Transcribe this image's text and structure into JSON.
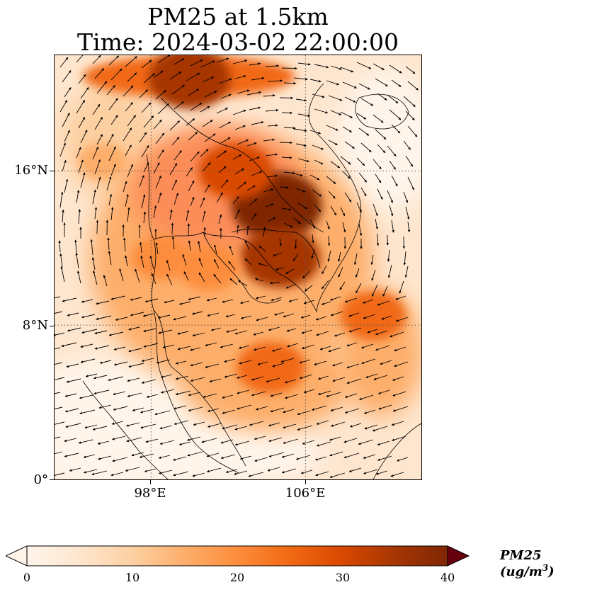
{
  "title_line1": "PM25 at 1.5km",
  "title_line2": "Time: 2024-03-02 22:00:00",
  "y_ticks": [
    "16°N",
    "8°N",
    "0°"
  ],
  "x_ticks": [
    "98°E",
    "106°E"
  ],
  "colorbar": {
    "label_main": "PM25 (ug/m",
    "label_exp": "3",
    "label_close": ")",
    "ticks": [
      "0",
      "10",
      "20",
      "30",
      "40"
    ],
    "cmap": [
      "#fff5eb",
      "#fee6ce",
      "#fdd0a2",
      "#fdae6b",
      "#fd8d3c",
      "#f16913",
      "#d94801",
      "#a63603",
      "#7f2704"
    ]
  },
  "extent": {
    "lon_min": 93,
    "lon_max": 112,
    "lat_min": 0,
    "lat_max": 22
  },
  "gridlines": {
    "lons": [
      98,
      106
    ],
    "lats": [
      8,
      16
    ]
  },
  "pm25_hotspots": [
    {
      "lon": 104.5,
      "lat": 14.2,
      "value": 40
    },
    {
      "lon": 102.4,
      "lat": 16.0,
      "value": 30
    },
    {
      "lon": 100.0,
      "lat": 20.8,
      "value": 34
    },
    {
      "lon": 104.7,
      "lat": 11.5,
      "value": 33
    },
    {
      "lon": 104.2,
      "lat": 5.8,
      "value": 26
    },
    {
      "lon": 109.5,
      "lat": 8.5,
      "value": 24
    },
    {
      "lon": 98.5,
      "lat": 11.5,
      "value": 20
    },
    {
      "lon": 101.0,
      "lat": 11.0,
      "value": 22
    },
    {
      "lon": 95.5,
      "lat": 16.5,
      "value": 14
    }
  ]
}
